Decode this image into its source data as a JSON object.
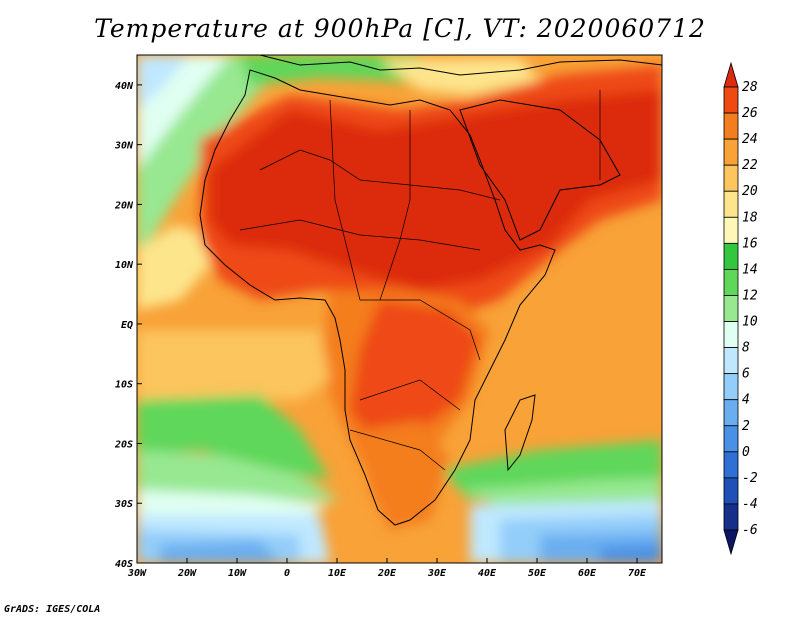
{
  "title": "Temperature at 900hPa [C], VT: 2020060712",
  "credit": "GrADS: IGES/COLA",
  "map": {
    "lon_range": [
      -30,
      75
    ],
    "lat_range": [
      -40,
      45
    ],
    "lon_ticks": [
      "30W",
      "20W",
      "10W",
      "0",
      "10E",
      "20E",
      "30E",
      "40E",
      "50E",
      "60E",
      "70E"
    ],
    "lat_ticks": [
      "40N",
      "30N",
      "20N",
      "10N",
      "EQ",
      "10S",
      "20S",
      "30S",
      "40S"
    ],
    "field": "temperature_900hPa"
  },
  "colorbar": {
    "labels": [
      "28",
      "26",
      "24",
      "22",
      "20",
      "18",
      "16",
      "14",
      "12",
      "10",
      "8",
      "6",
      "4",
      "2",
      "0",
      "-2",
      "-4",
      "-6"
    ],
    "colors": [
      "#dc2b0e",
      "#ee4a12",
      "#f47d1f",
      "#f8a238",
      "#fcc55d",
      "#fde58c",
      "#fff7b8",
      "#33c63f",
      "#5fd75a",
      "#97e891",
      "#e0fff2",
      "#bfe8ff",
      "#93cdf9",
      "#6aaef0",
      "#4a90e6",
      "#2f6fd6",
      "#1f50b8",
      "#152f8a",
      "#0b1565"
    ]
  }
}
